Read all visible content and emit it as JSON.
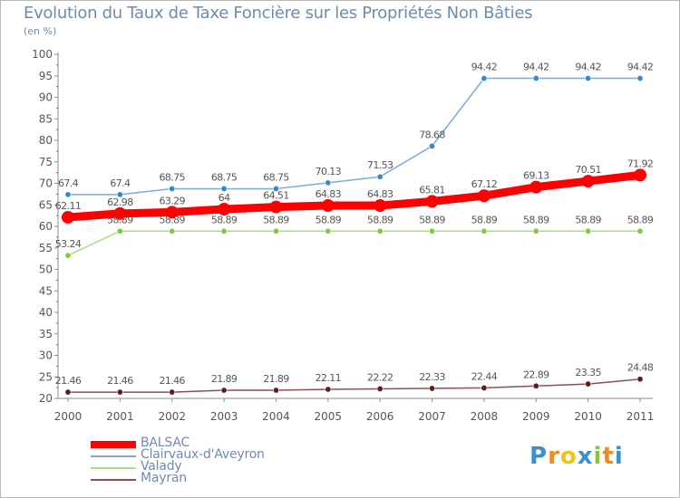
{
  "header": {
    "title": "Evolution du Taux de Taxe Foncière sur les Propriétés Non Bâties",
    "subtitle": "(en %)"
  },
  "brand": {
    "letters": [
      "P",
      "r",
      "o",
      "x",
      "i",
      "t",
      "i"
    ],
    "colors": [
      "#3e8fd0",
      "#f08a24",
      "#f2c218",
      "#3e8fd0",
      "#8bc53f",
      "#f08a24",
      "#3e8fd0"
    ]
  },
  "chart_data": {
    "type": "line",
    "title": "Evolution du Taux de Taxe Foncière sur les Propriétés Non Bâties",
    "ylabel": "(en %)",
    "xlabel": "",
    "categories": [
      "2000",
      "2001",
      "2002",
      "2003",
      "2004",
      "2005",
      "2006",
      "2007",
      "2008",
      "2009",
      "2010",
      "2011"
    ],
    "ylim": [
      20,
      100
    ],
    "yticks": [
      20,
      25,
      30,
      35,
      40,
      45,
      50,
      55,
      60,
      65,
      70,
      75,
      80,
      85,
      90,
      95,
      100
    ],
    "grid": false,
    "legend": "bottom-left",
    "series": [
      {
        "name": "BALSAC",
        "color": "#ff0000",
        "marker_color": "#ff0000",
        "emphasis": "thick",
        "values": [
          62.11,
          62.98,
          63.29,
          64,
          64.51,
          64.83,
          64.83,
          65.81,
          67.12,
          69.13,
          70.51,
          71.92
        ],
        "labels": [
          "62.11",
          "62.98",
          "63.29",
          "64",
          "64.51",
          "64.83",
          "64.83",
          "65.81",
          "67.12",
          "69.13",
          "70.51",
          "71.92"
        ]
      },
      {
        "name": "Clairvaux-d'Aveyron",
        "color": "#7aa9d6",
        "marker_color": "#3a87c8",
        "emphasis": "normal",
        "values": [
          67.4,
          67.4,
          68.75,
          68.75,
          68.75,
          70.13,
          71.53,
          78.68,
          94.42,
          94.42,
          94.42,
          94.42
        ],
        "labels": [
          "67.4",
          "67.4",
          "68.75",
          "68.75",
          "68.75",
          "70.13",
          "71.53",
          "78.68",
          "94.42",
          "94.42",
          "94.42",
          "94.42"
        ]
      },
      {
        "name": "Valady",
        "color": "#a9dd7e",
        "marker_color": "#7fcc3a",
        "emphasis": "normal",
        "values": [
          53.24,
          58.89,
          58.89,
          58.89,
          58.89,
          58.89,
          58.89,
          58.89,
          58.89,
          58.89,
          58.89,
          58.89
        ],
        "labels": [
          "53.24",
          "58.89",
          "58.89",
          "58.89",
          "58.89",
          "58.89",
          "58.89",
          "58.89",
          "58.89",
          "58.89",
          "58.89",
          "58.89"
        ]
      },
      {
        "name": "Mayran",
        "color": "#8c4f52",
        "marker_color": "#5e1d22",
        "emphasis": "normal",
        "values": [
          21.46,
          21.46,
          21.46,
          21.89,
          21.89,
          22.11,
          22.22,
          22.33,
          22.44,
          22.89,
          23.35,
          24.48
        ],
        "labels": [
          "21.46",
          "21.46",
          "21.46",
          "21.89",
          "21.89",
          "22.11",
          "22.22",
          "22.33",
          "22.44",
          "22.89",
          "23.35",
          "24.48"
        ]
      }
    ]
  }
}
